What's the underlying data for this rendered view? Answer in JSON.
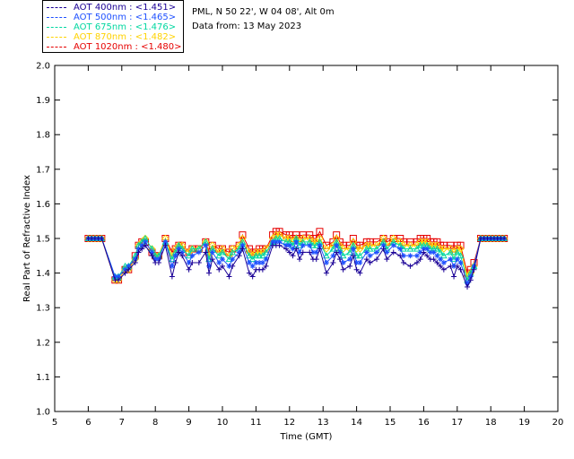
{
  "legend": [
    {
      "label": "AOT  400nm : <1.451>",
      "color": "#1a0096"
    },
    {
      "label": "AOT  500nm : <1.465>",
      "color": "#1e50ff"
    },
    {
      "label": "AOT  675nm : <1.476>",
      "color": "#00d7a0"
    },
    {
      "label": "AOT  870nm : <1.482>",
      "color": "#ffd200"
    },
    {
      "label": "AOT 1020nm : <1.480>",
      "color": "#e60000"
    }
  ],
  "info": {
    "site": "PML, N 50 22', W 04 08', Alt 0m",
    "date": "Data from: 13 May 2023"
  },
  "chart_data": {
    "type": "line",
    "title": "",
    "xlabel": "Time (GMT)",
    "ylabel": "Real Part of Refractive Index",
    "xlim": [
      5,
      20
    ],
    "ylim": [
      1.0,
      2.0
    ],
    "xticks": [
      "5",
      "6",
      "7",
      "8",
      "9",
      "10",
      "11",
      "12",
      "13",
      "14",
      "15",
      "16",
      "17",
      "18",
      "19",
      "20"
    ],
    "yticks": [
      "1.0",
      "1.1",
      "1.2",
      "1.3",
      "1.4",
      "1.5",
      "1.6",
      "1.7",
      "1.8",
      "1.9",
      "2.0"
    ],
    "x": [
      6.0,
      6.1,
      6.2,
      6.3,
      6.4,
      6.8,
      6.9,
      7.1,
      7.2,
      7.4,
      7.5,
      7.6,
      7.7,
      7.9,
      8.0,
      8.1,
      8.3,
      8.5,
      8.6,
      8.7,
      8.8,
      9.0,
      9.1,
      9.3,
      9.5,
      9.6,
      9.7,
      9.9,
      10.0,
      10.2,
      10.3,
      10.5,
      10.6,
      10.8,
      10.9,
      11.0,
      11.1,
      11.2,
      11.3,
      11.5,
      11.6,
      11.7,
      11.9,
      12.0,
      12.1,
      12.2,
      12.3,
      12.4,
      12.6,
      12.7,
      12.8,
      12.9,
      13.1,
      13.3,
      13.4,
      13.5,
      13.6,
      13.8,
      13.9,
      14.0,
      14.1,
      14.3,
      14.4,
      14.6,
      14.8,
      14.9,
      15.1,
      15.3,
      15.4,
      15.6,
      15.8,
      15.9,
      16.0,
      16.1,
      16.2,
      16.3,
      16.4,
      16.5,
      16.6,
      16.8,
      16.9,
      17.0,
      17.1,
      17.3,
      17.4,
      17.5,
      17.7,
      17.8,
      17.9,
      18.0,
      18.1,
      18.2,
      18.3,
      18.4
    ],
    "series": [
      {
        "name": "AOT  400nm",
        "values": [
          1.5,
          1.5,
          1.5,
          1.5,
          1.5,
          1.38,
          1.38,
          1.4,
          1.41,
          1.43,
          1.46,
          1.47,
          1.48,
          1.45,
          1.43,
          1.43,
          1.48,
          1.39,
          1.43,
          1.46,
          1.45,
          1.41,
          1.43,
          1.43,
          1.46,
          1.4,
          1.44,
          1.41,
          1.42,
          1.39,
          1.42,
          1.45,
          1.47,
          1.4,
          1.39,
          1.41,
          1.41,
          1.41,
          1.42,
          1.48,
          1.48,
          1.48,
          1.47,
          1.46,
          1.45,
          1.47,
          1.44,
          1.46,
          1.46,
          1.44,
          1.44,
          1.47,
          1.4,
          1.43,
          1.46,
          1.44,
          1.41,
          1.42,
          1.45,
          1.41,
          1.4,
          1.44,
          1.43,
          1.44,
          1.47,
          1.44,
          1.46,
          1.45,
          1.43,
          1.42,
          1.43,
          1.44,
          1.46,
          1.45,
          1.44,
          1.44,
          1.43,
          1.42,
          1.41,
          1.42,
          1.39,
          1.42,
          1.41,
          1.36,
          1.38,
          1.41,
          1.5,
          1.5,
          1.5,
          1.5,
          1.5,
          1.5,
          1.5,
          1.5
        ]
      },
      {
        "name": "AOT  500nm",
        "values": [
          1.5,
          1.5,
          1.5,
          1.5,
          1.5,
          1.39,
          1.39,
          1.41,
          1.42,
          1.44,
          1.47,
          1.48,
          1.49,
          1.46,
          1.44,
          1.44,
          1.49,
          1.42,
          1.45,
          1.47,
          1.46,
          1.43,
          1.45,
          1.46,
          1.48,
          1.42,
          1.46,
          1.43,
          1.44,
          1.42,
          1.44,
          1.46,
          1.48,
          1.43,
          1.42,
          1.43,
          1.43,
          1.43,
          1.44,
          1.49,
          1.49,
          1.49,
          1.48,
          1.48,
          1.47,
          1.49,
          1.46,
          1.48,
          1.48,
          1.46,
          1.46,
          1.48,
          1.43,
          1.45,
          1.48,
          1.46,
          1.43,
          1.44,
          1.47,
          1.43,
          1.43,
          1.46,
          1.45,
          1.46,
          1.48,
          1.46,
          1.48,
          1.47,
          1.45,
          1.45,
          1.45,
          1.46,
          1.47,
          1.47,
          1.46,
          1.46,
          1.45,
          1.44,
          1.43,
          1.44,
          1.42,
          1.44,
          1.43,
          1.37,
          1.39,
          1.42,
          1.5,
          1.5,
          1.5,
          1.5,
          1.5,
          1.5,
          1.5,
          1.5
        ]
      },
      {
        "name": "AOT  675nm",
        "values": [
          1.5,
          1.5,
          1.5,
          1.5,
          1.5,
          1.39,
          1.39,
          1.42,
          1.42,
          1.45,
          1.48,
          1.49,
          1.5,
          1.47,
          1.45,
          1.45,
          1.49,
          1.44,
          1.46,
          1.48,
          1.47,
          1.45,
          1.47,
          1.47,
          1.49,
          1.44,
          1.47,
          1.45,
          1.46,
          1.44,
          1.46,
          1.47,
          1.49,
          1.45,
          1.44,
          1.45,
          1.45,
          1.45,
          1.46,
          1.49,
          1.5,
          1.5,
          1.49,
          1.49,
          1.48,
          1.5,
          1.48,
          1.49,
          1.49,
          1.48,
          1.48,
          1.49,
          1.45,
          1.47,
          1.49,
          1.47,
          1.45,
          1.46,
          1.48,
          1.45,
          1.45,
          1.47,
          1.47,
          1.47,
          1.49,
          1.47,
          1.49,
          1.48,
          1.47,
          1.47,
          1.47,
          1.48,
          1.48,
          1.48,
          1.47,
          1.47,
          1.47,
          1.46,
          1.45,
          1.46,
          1.44,
          1.46,
          1.45,
          1.38,
          1.4,
          1.42,
          1.5,
          1.5,
          1.5,
          1.5,
          1.5,
          1.5,
          1.5,
          1.5
        ]
      },
      {
        "name": "AOT  870nm",
        "values": [
          1.5,
          1.5,
          1.5,
          1.5,
          1.5,
          1.38,
          1.38,
          1.41,
          1.41,
          1.44,
          1.48,
          1.49,
          1.5,
          1.47,
          1.45,
          1.45,
          1.5,
          1.45,
          1.47,
          1.48,
          1.48,
          1.46,
          1.47,
          1.47,
          1.49,
          1.45,
          1.48,
          1.46,
          1.47,
          1.45,
          1.47,
          1.48,
          1.5,
          1.46,
          1.45,
          1.46,
          1.46,
          1.46,
          1.47,
          1.5,
          1.51,
          1.51,
          1.5,
          1.5,
          1.49,
          1.5,
          1.49,
          1.5,
          1.5,
          1.49,
          1.49,
          1.5,
          1.47,
          1.48,
          1.5,
          1.48,
          1.47,
          1.47,
          1.49,
          1.47,
          1.47,
          1.48,
          1.48,
          1.48,
          1.5,
          1.48,
          1.5,
          1.49,
          1.48,
          1.48,
          1.48,
          1.49,
          1.49,
          1.49,
          1.48,
          1.48,
          1.48,
          1.47,
          1.47,
          1.47,
          1.46,
          1.47,
          1.47,
          1.39,
          1.4,
          1.42,
          1.5,
          1.5,
          1.5,
          1.5,
          1.5,
          1.5,
          1.5,
          1.5
        ]
      },
      {
        "name": "AOT 1020nm",
        "values": [
          1.5,
          1.5,
          1.5,
          1.5,
          1.5,
          1.38,
          1.38,
          1.41,
          1.41,
          1.45,
          1.48,
          1.49,
          1.49,
          1.46,
          1.45,
          1.45,
          1.5,
          1.46,
          1.47,
          1.48,
          1.48,
          1.46,
          1.47,
          1.47,
          1.49,
          1.46,
          1.48,
          1.47,
          1.47,
          1.46,
          1.47,
          1.48,
          1.51,
          1.47,
          1.46,
          1.46,
          1.47,
          1.47,
          1.47,
          1.51,
          1.52,
          1.52,
          1.51,
          1.51,
          1.5,
          1.51,
          1.5,
          1.51,
          1.51,
          1.5,
          1.5,
          1.52,
          1.48,
          1.49,
          1.51,
          1.49,
          1.48,
          1.48,
          1.5,
          1.48,
          1.48,
          1.49,
          1.49,
          1.49,
          1.5,
          1.49,
          1.5,
          1.5,
          1.49,
          1.49,
          1.49,
          1.5,
          1.5,
          1.5,
          1.49,
          1.49,
          1.49,
          1.48,
          1.48,
          1.48,
          1.47,
          1.48,
          1.48,
          1.4,
          1.41,
          1.43,
          1.5,
          1.5,
          1.5,
          1.5,
          1.5,
          1.5,
          1.5,
          1.5
        ]
      }
    ]
  }
}
